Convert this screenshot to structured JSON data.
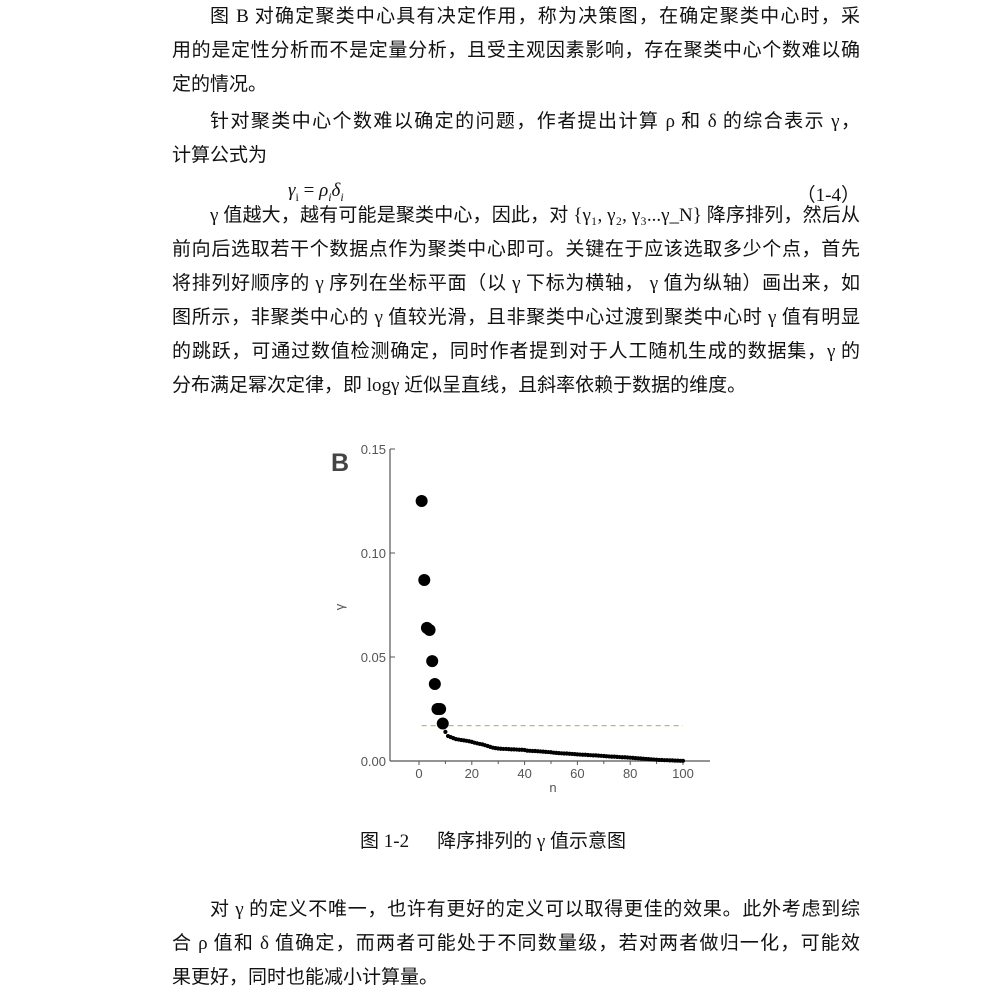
{
  "paragraph1": [
    "图 B 对确定聚类中心具有决定作用，称为决策图，在确定聚类中心时，采",
    "用的是定性分析而不是定量分析，且受主观因素影响，存在聚类中心个数难以确",
    "定的情况。"
  ],
  "paragraph2": [
    "针对聚类中心个数难以确定的问题，作者提出计算 ρ 和 δ 的综合表示 γ，",
    "计算公式为"
  ],
  "formula": {
    "lhs": "γ",
    "lhs_sub": "i",
    "eq": " = ",
    "rho": "ρ",
    "rho_sub": "i",
    "delta": "δ",
    "delta_sub": "i",
    "number": "（1-4）"
  },
  "paragraph3": [
    "γ 值越大，越有可能是聚类中心，因此，对 {γ₁, γ₂, γ₃...γ_N} 降序排列，然后从",
    "前向后选取若干个数据点作为聚类中心即可。关键在于应该选取多少个点，首先",
    "将排列好顺序的 γ 序列在坐标平面（以 γ 下标为横轴， γ 值为纵轴）画出来，如",
    "图所示，非聚类中心的 γ 值较光滑，且非聚类中心过渡到聚类中心时 γ 值有明显",
    "的跳跃，可通过数值检测确定，同时作者提到对于人工随机生成的数据集，γ 的",
    "分布满足幂次定律，即 logγ 近似呈直线，且斜率依赖于数据的维度。"
  ],
  "caption": {
    "number": "图 1-2",
    "text": "降序排列的 γ 值示意图"
  },
  "paragraph4": [
    "对 γ 的定义不唯一，也许有更好的定义可以取得更佳的效果。此外考虑到综",
    "合 ρ 值和 δ 值确定，而两者可能处于不同数量级，若对两者做归一化，可能效",
    "果更好，同时也能减小计算量。"
  ],
  "chart_data": {
    "type": "scatter",
    "panel_label": "B",
    "xlabel": "n",
    "ylabel": "γ",
    "xlim": [
      -10,
      110
    ],
    "ylim": [
      0,
      0.15
    ],
    "xticks": [
      "0",
      "20",
      "40",
      "60",
      "80",
      "100"
    ],
    "yticks": [
      "0.00",
      "0.05",
      "0.10",
      "0.15"
    ],
    "grid": false,
    "colors": {
      "points": "#000000",
      "threshold": "#a8c85a",
      "axis": "#555555"
    },
    "threshold": {
      "value": 0.017,
      "x_range": [
        1,
        100
      ],
      "style": "dashed"
    },
    "centers": {
      "x": [
        1,
        2,
        3,
        4,
        5,
        6,
        7,
        8,
        9
      ],
      "y": [
        0.125,
        0.087,
        0.064,
        0.063,
        0.048,
        0.037,
        0.025,
        0.025,
        0.018
      ]
    },
    "others": {
      "x": [
        10,
        11,
        12,
        13,
        14,
        15,
        16,
        17,
        18,
        19,
        20,
        21,
        22,
        23,
        24,
        25,
        26,
        27,
        28,
        29,
        30,
        31,
        32,
        33,
        34,
        35,
        36,
        37,
        38,
        39,
        40,
        41,
        42,
        43,
        44,
        45,
        46,
        47,
        48,
        49,
        50,
        51,
        52,
        53,
        54,
        55,
        56,
        57,
        58,
        59,
        60,
        61,
        62,
        63,
        64,
        65,
        66,
        67,
        68,
        69,
        70,
        71,
        72,
        73,
        74,
        75,
        76,
        77,
        78,
        79,
        80,
        81,
        82,
        83,
        84,
        85,
        86,
        87,
        88,
        89,
        90,
        91,
        92,
        93,
        94,
        95,
        96,
        97,
        98,
        99,
        100
      ],
      "y": [
        0.014,
        0.012,
        0.0115,
        0.011,
        0.0105,
        0.0103,
        0.0101,
        0.0099,
        0.0097,
        0.0095,
        0.0092,
        0.0088,
        0.0085,
        0.0082,
        0.008,
        0.0076,
        0.0072,
        0.0068,
        0.0064,
        0.0062,
        0.006,
        0.0059,
        0.0058,
        0.0058,
        0.0057,
        0.0056,
        0.0056,
        0.0055,
        0.0054,
        0.0054,
        0.0053,
        0.005,
        0.0049,
        0.0048,
        0.0048,
        0.0047,
        0.0046,
        0.0045,
        0.0044,
        0.0043,
        0.0042,
        0.004,
        0.0039,
        0.0038,
        0.0037,
        0.0036,
        0.0036,
        0.0035,
        0.0034,
        0.0033,
        0.0032,
        0.0031,
        0.003,
        0.003,
        0.0029,
        0.0028,
        0.0027,
        0.0027,
        0.0026,
        0.0025,
        0.0024,
        0.0023,
        0.0022,
        0.0021,
        0.0021,
        0.002,
        0.0019,
        0.0018,
        0.0018,
        0.0017,
        0.0016,
        0.0015,
        0.0014,
        0.0013,
        0.0012,
        0.0011,
        0.001,
        0.0009,
        0.0008,
        0.0007,
        0.0006,
        0.0005,
        0.0005,
        0.0004,
        0.0004,
        0.0003,
        0.0003,
        0.0002,
        0.0002,
        0.0001,
        0.0001
      ]
    }
  }
}
